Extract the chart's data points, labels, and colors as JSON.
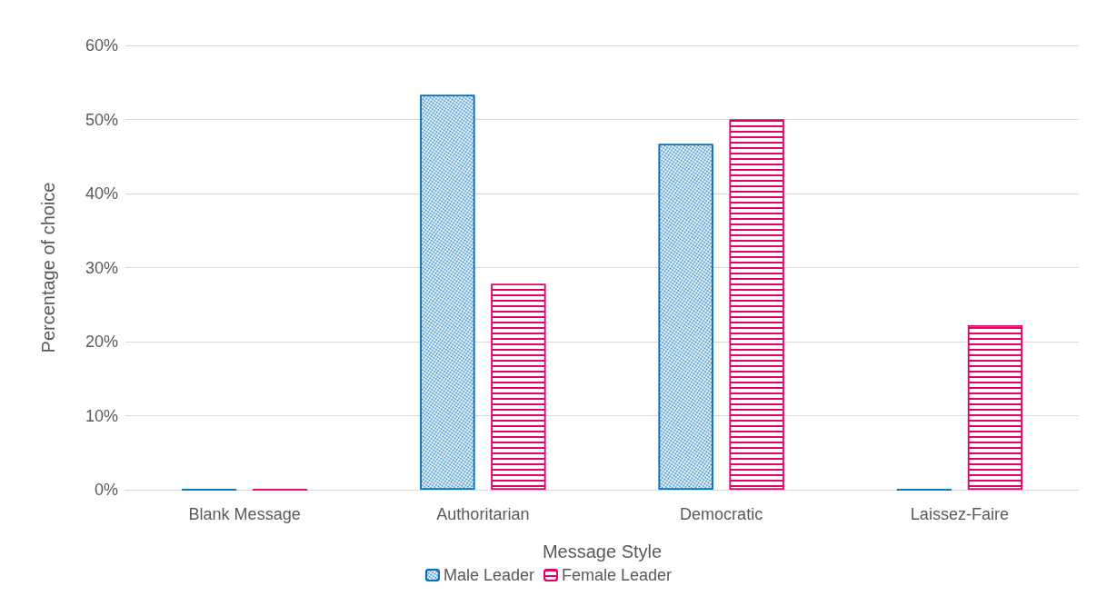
{
  "chart_data": {
    "type": "bar",
    "xlabel": "Message Style",
    "ylabel": "Percentage of choice",
    "categories": [
      "Blank Message",
      "Authoritarian",
      "Democratic",
      "Laissez-Faire"
    ],
    "series": [
      {
        "name": "Male Leader",
        "color": "#0070c0",
        "values": [
          0,
          53.3,
          46.7,
          0
        ]
      },
      {
        "name": "Female Leader",
        "color": "#e8006a",
        "values": [
          0,
          27.8,
          50,
          22.2
        ]
      }
    ],
    "ylim": [
      0,
      60
    ],
    "yticks": [
      {
        "value": 0,
        "label": "0%"
      },
      {
        "value": 10,
        "label": "10%"
      },
      {
        "value": 20,
        "label": "20%"
      },
      {
        "value": 30,
        "label": "30%"
      },
      {
        "value": 40,
        "label": "40%"
      },
      {
        "value": 50,
        "label": "50%"
      },
      {
        "value": 60,
        "label": "60%"
      }
    ],
    "grid": "y",
    "legend": "bottom"
  }
}
